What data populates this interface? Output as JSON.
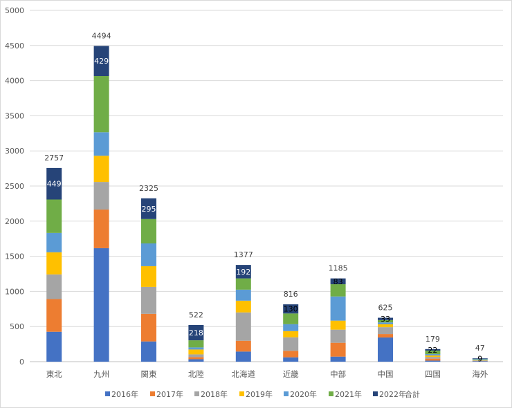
{
  "chart_data": {
    "type": "bar",
    "stacked": true,
    "title": "",
    "xlabel": "",
    "ylabel": "",
    "ylim": [
      0,
      5000
    ],
    "yticks": [
      "0",
      "500",
      "1000",
      "1500",
      "2000",
      "2500",
      "3000",
      "3500",
      "4000",
      "4500",
      "5000"
    ],
    "ytick_values": [
      0,
      500,
      1000,
      1500,
      2000,
      2500,
      3000,
      3500,
      4000,
      4500,
      5000
    ],
    "grid": true,
    "legend_position": "bottom",
    "categories": [
      "東北",
      "九州",
      "関東",
      "北陸",
      "北海道",
      "近畿",
      "中部",
      "中国",
      "四国",
      "海外"
    ],
    "series": [
      {
        "name": "2016年",
        "color": "#4472C4",
        "values": [
          426,
          1615,
          288,
          35,
          144,
          62,
          72,
          344,
          15,
          8
        ]
      },
      {
        "name": "2017年",
        "color": "#ED7D31",
        "values": [
          465,
          550,
          393,
          30,
          154,
          92,
          197,
          49,
          28,
          3
        ]
      },
      {
        "name": "2018年",
        "color": "#A5A5A5",
        "values": [
          351,
          393,
          383,
          39,
          403,
          193,
          187,
          98,
          25,
          5
        ]
      },
      {
        "name": "2019年",
        "color": "#FFC000",
        "values": [
          315,
          373,
          295,
          69,
          167,
          88,
          128,
          42,
          20,
          4
        ]
      },
      {
        "name": "2020年",
        "color": "#5B9BD5",
        "values": [
          275,
          334,
          324,
          30,
          157,
          98,
          344,
          26,
          20,
          12
        ]
      },
      {
        "name": "2021年",
        "color": "#70AD47",
        "values": [
          476,
          800,
          347,
          101,
          160,
          153,
          174,
          33,
          49,
          6
        ]
      },
      {
        "name": "2022年",
        "color": "#264478",
        "values": [
          449,
          429,
          295,
          218,
          192,
          130,
          83,
          33,
          22,
          9
        ]
      }
    ],
    "segment_labels": {
      "series": "2022年",
      "labels": [
        "449",
        "429",
        "295",
        "218",
        "192",
        "130",
        "83",
        "33",
        "22",
        "9"
      ]
    },
    "totals": {
      "name": "合計",
      "values": [
        2757,
        4494,
        2325,
        522,
        1377,
        816,
        1185,
        625,
        179,
        47
      ],
      "labels": [
        "2757",
        "4494",
        "2325",
        "522",
        "1377",
        "816",
        "1185",
        "625",
        "179",
        "47"
      ]
    }
  }
}
